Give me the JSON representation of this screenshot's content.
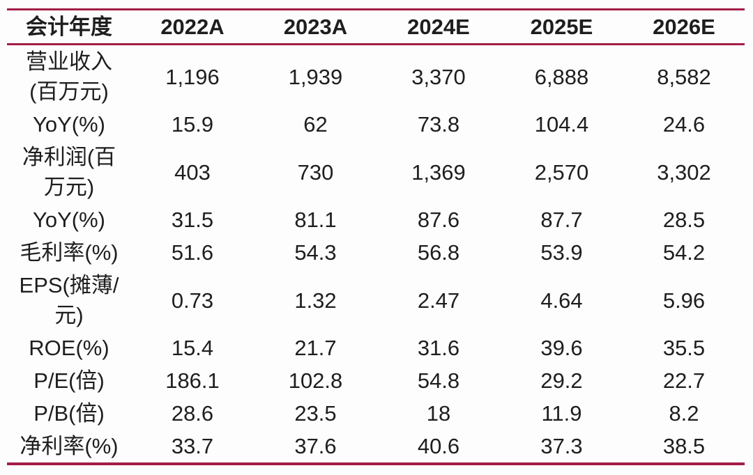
{
  "table": {
    "accent_color": "#a31e46",
    "header": [
      "会计年度",
      "2022A",
      "2023A",
      "2024E",
      "2025E",
      "2026E"
    ],
    "rows": [
      {
        "label": "营业收入(百万元)",
        "label_lines": [
          "营业收入",
          "(百万元)"
        ],
        "values": [
          "1,196",
          "1,939",
          "3,370",
          "6,888",
          "8,582"
        ]
      },
      {
        "label": "YoY(%)",
        "label_lines": [
          "YoY(%)"
        ],
        "values": [
          "15.9",
          "62",
          "73.8",
          "104.4",
          "24.6"
        ]
      },
      {
        "label": "净利润(百万元)",
        "label_lines": [
          "净利润(百",
          "万元)"
        ],
        "values": [
          "403",
          "730",
          "1,369",
          "2,570",
          "3,302"
        ]
      },
      {
        "label": "YoY(%)",
        "label_lines": [
          "YoY(%)"
        ],
        "values": [
          "31.5",
          "81.1",
          "87.6",
          "87.7",
          "28.5"
        ]
      },
      {
        "label": "毛利率(%)",
        "label_lines": [
          "毛利率(%)"
        ],
        "values": [
          "51.6",
          "54.3",
          "56.8",
          "53.9",
          "54.2"
        ]
      },
      {
        "label": "EPS(摊薄/元)",
        "label_lines": [
          "EPS(摊薄/",
          "元)"
        ],
        "values": [
          "0.73",
          "1.32",
          "2.47",
          "4.64",
          "5.96"
        ]
      },
      {
        "label": "ROE(%)",
        "label_lines": [
          "ROE(%)"
        ],
        "values": [
          "15.4",
          "21.7",
          "31.6",
          "39.6",
          "35.5"
        ]
      },
      {
        "label": "P/E(倍)",
        "label_lines": [
          "P/E(倍)"
        ],
        "values": [
          "186.1",
          "102.8",
          "54.8",
          "29.2",
          "22.7"
        ]
      },
      {
        "label": "P/B(倍)",
        "label_lines": [
          "P/B(倍)"
        ],
        "values": [
          "28.6",
          "23.5",
          "18",
          "11.9",
          "8.2"
        ]
      },
      {
        "label": "净利率(%)",
        "label_lines": [
          "净利率(%)"
        ],
        "values": [
          "33.7",
          "37.6",
          "40.6",
          "37.3",
          "38.5"
        ]
      }
    ]
  },
  "chart_data": {
    "type": "table",
    "title": "",
    "columns": [
      "会计年度",
      "2022A",
      "2023A",
      "2024E",
      "2025E",
      "2026E"
    ],
    "rows": [
      [
        "营业收入(百万元)",
        1196,
        1939,
        3370,
        6888,
        8582
      ],
      [
        "YoY(%)",
        15.9,
        62,
        73.8,
        104.4,
        24.6
      ],
      [
        "净利润(百万元)",
        403,
        730,
        1369,
        2570,
        3302
      ],
      [
        "YoY(%)",
        31.5,
        81.1,
        87.6,
        87.7,
        28.5
      ],
      [
        "毛利率(%)",
        51.6,
        54.3,
        56.8,
        53.9,
        54.2
      ],
      [
        "EPS(摊薄/元)",
        0.73,
        1.32,
        2.47,
        4.64,
        5.96
      ],
      [
        "ROE(%)",
        15.4,
        21.7,
        31.6,
        39.6,
        35.5
      ],
      [
        "P/E(倍)",
        186.1,
        102.8,
        54.8,
        29.2,
        22.7
      ],
      [
        "P/B(倍)",
        28.6,
        23.5,
        18,
        11.9,
        8.2
      ],
      [
        "净利率(%)",
        33.7,
        37.6,
        40.6,
        37.3,
        38.5
      ]
    ],
    "layout_hints": {
      "header_bold": true,
      "rule_color": "#a31e46",
      "rules": [
        "top",
        "below-header",
        "bottom"
      ],
      "cell_alignment": "center",
      "grid": "horizontal-rules-only"
    }
  }
}
